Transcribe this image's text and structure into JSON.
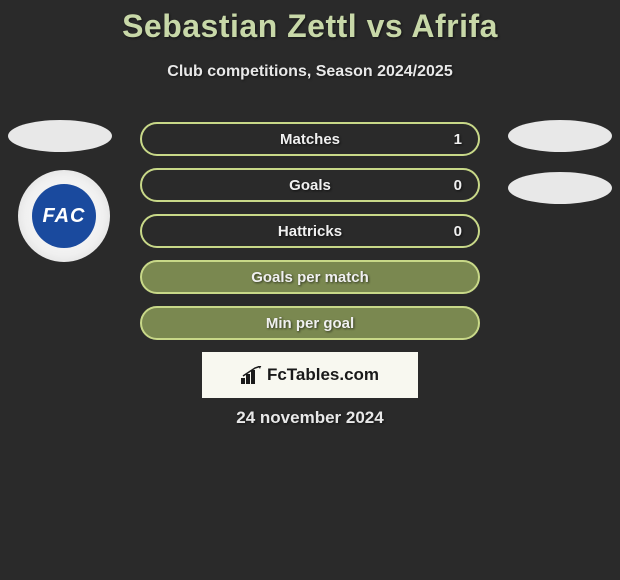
{
  "title": "Sebastian Zettl vs Afrifa",
  "subtitle": "Club competitions, Season 2024/2025",
  "club_badge": {
    "abbrev": "FAC",
    "primary_color": "#1a4a9e",
    "text_color": "#ffffff"
  },
  "stats": [
    {
      "label": "Matches",
      "value": "1",
      "has_value": true,
      "border_color": "#c8d888",
      "bg_color": "transparent"
    },
    {
      "label": "Goals",
      "value": "0",
      "has_value": true,
      "border_color": "#c8d888",
      "bg_color": "transparent"
    },
    {
      "label": "Hattricks",
      "value": "0",
      "has_value": true,
      "border_color": "#c8d888",
      "bg_color": "transparent"
    },
    {
      "label": "Goals per match",
      "value": "",
      "has_value": false,
      "border_color": "#c8d888",
      "bg_color": "#7a8850"
    },
    {
      "label": "Min per goal",
      "value": "",
      "has_value": false,
      "border_color": "#c8d888",
      "bg_color": "#7a8850"
    }
  ],
  "watermark": "FcTables.com",
  "date": "24 november 2024",
  "colors": {
    "background": "#2a2a2a",
    "title_color": "#c8d8a8",
    "text_light": "#e8e8e8"
  }
}
